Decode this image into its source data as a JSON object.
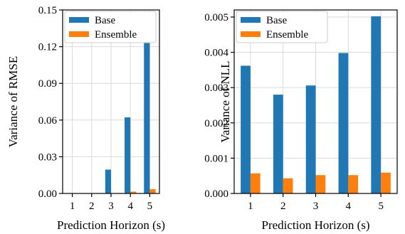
{
  "colors": {
    "base": "#1f77b4",
    "ensemble": "#ff7f0e"
  },
  "chart_data": [
    {
      "type": "bar",
      "categories": [
        "1",
        "2",
        "3",
        "4",
        "5"
      ],
      "series": [
        {
          "name": "Base",
          "values": [
            0.0003,
            0.0003,
            0.0195,
            0.0622,
            0.1315
          ]
        },
        {
          "name": "Ensemble",
          "values": [
            0.0001,
            0.0001,
            0.0003,
            0.0015,
            0.0035
          ]
        }
      ],
      "xlabel": "Prediction Horizon (s)",
      "ylabel": "Variance of RMSE",
      "ylim": [
        0,
        0.15
      ],
      "yticks": [
        "0.00",
        "0.03",
        "0.06",
        "0.09",
        "0.12",
        "0.15"
      ],
      "grid": true,
      "legend": "top-left"
    },
    {
      "type": "bar",
      "categories": [
        "1",
        "2",
        "3",
        "4",
        "5"
      ],
      "series": [
        {
          "name": "Base",
          "values": [
            0.00362,
            0.0028,
            0.00306,
            0.00398,
            0.00502
          ]
        },
        {
          "name": "Ensemble",
          "values": [
            0.00057,
            0.00043,
            0.00052,
            0.00052,
            0.00059
          ]
        }
      ],
      "xlabel": "Prediction Horizon (s)",
      "ylabel": "Variance of NLL",
      "ylim": [
        0,
        0.0052
      ],
      "yticks": [
        "0.000",
        "0.001",
        "0.002",
        "0.003",
        "0.004",
        "0.005"
      ],
      "grid": true,
      "legend": "top-left"
    }
  ]
}
